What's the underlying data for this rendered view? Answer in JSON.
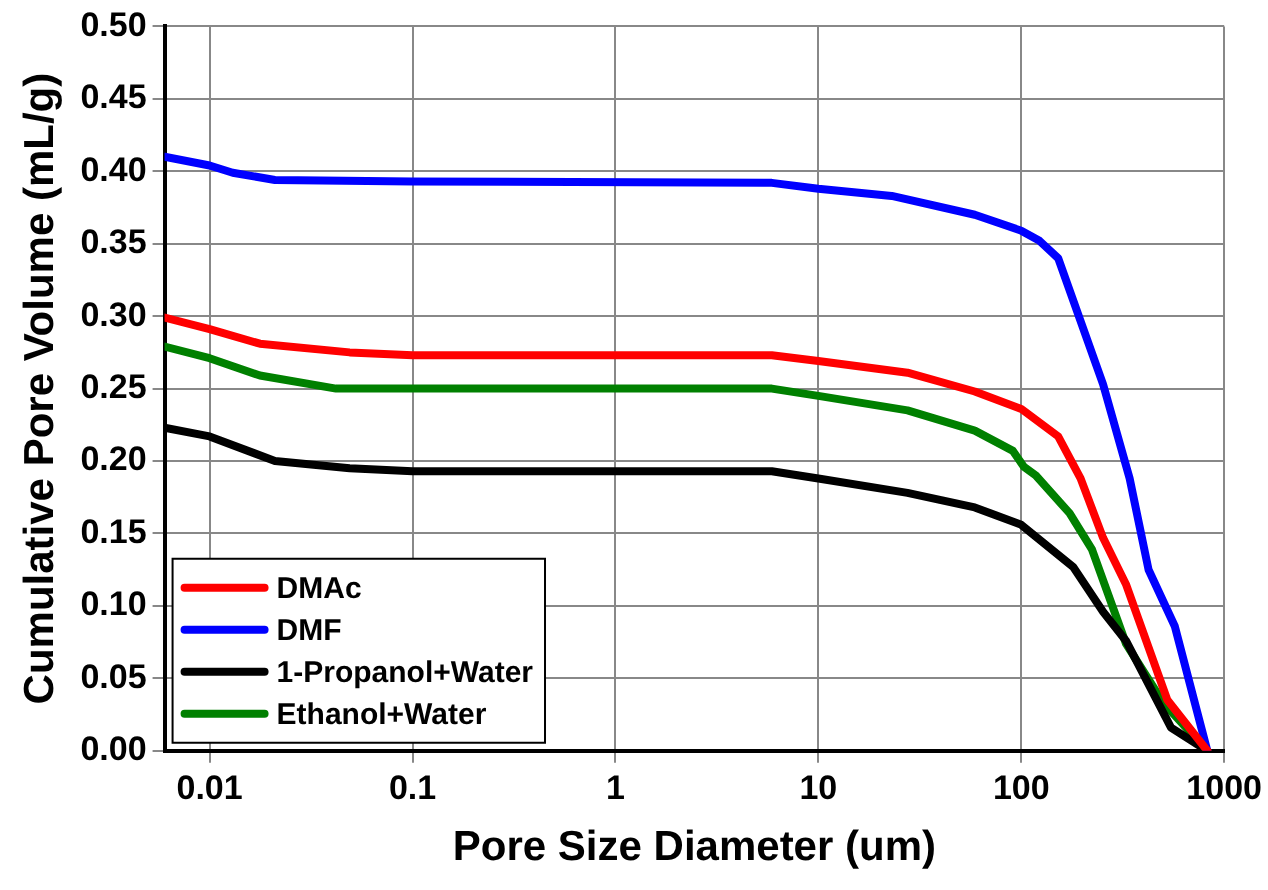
{
  "chart_data": {
    "type": "line",
    "xlabel": "Pore Size Diameter (um)",
    "ylabel": "Cumulative Pore Volume (mL/g)",
    "log": "x",
    "xlim": [
      0.006,
      1000
    ],
    "xticks": [
      0.01,
      0.1,
      1,
      10,
      100,
      1000
    ],
    "ylim": [
      0,
      0.5
    ],
    "yticks": [
      {
        "value": 0,
        "label": "0.00"
      },
      {
        "value": 0.05,
        "label": "0.05"
      },
      {
        "value": 0.1,
        "label": "0.10"
      },
      {
        "value": 0.15,
        "label": "0.15"
      },
      {
        "value": 0.2,
        "label": "0.20"
      },
      {
        "value": 0.25,
        "label": "0.25"
      },
      {
        "value": 0.3,
        "label": "0.30"
      },
      {
        "value": 0.35,
        "label": "0.35"
      },
      {
        "value": 0.4,
        "label": "0.40"
      },
      {
        "value": 0.45,
        "label": "0.45"
      },
      {
        "value": 0.5,
        "label": "0.50"
      }
    ],
    "grid": true,
    "legend": "bottom left",
    "marker": "none",
    "line_style": "solid",
    "series": [
      {
        "name": "DMAc",
        "color": "#ff0000",
        "x": [
          0.006,
          0.01,
          0.0177,
          0.049,
          0.1,
          5.9,
          10,
          27.5,
          59,
          100,
          152,
          196,
          253,
          328,
          525,
          826
        ],
        "values": [
          0.299,
          0.291,
          0.281,
          0.275,
          0.273,
          0.273,
          0.269,
          0.261,
          0.248,
          0.236,
          0.217,
          0.188,
          0.147,
          0.115,
          0.035,
          0
        ]
      },
      {
        "name": "DMF",
        "color": "#0000ff",
        "x": [
          0.006,
          0.01,
          0.013,
          0.021,
          0.1,
          5.9,
          10,
          23,
          59,
          100,
          123,
          152,
          253,
          342,
          424,
          571,
          826
        ],
        "values": [
          0.41,
          0.404,
          0.399,
          0.394,
          0.393,
          0.392,
          0.388,
          0.383,
          0.37,
          0.359,
          0.352,
          0.34,
          0.253,
          0.188,
          0.125,
          0.086,
          0
        ]
      },
      {
        "name": "1-Propanol+Water",
        "color": "#000000",
        "x": [
          0.006,
          0.01,
          0.021,
          0.049,
          0.1,
          5.9,
          10,
          27.5,
          59,
          100,
          180,
          253,
          328,
          547,
          826
        ],
        "values": [
          0.223,
          0.217,
          0.2,
          0.195,
          0.193,
          0.193,
          0.188,
          0.178,
          0.168,
          0.156,
          0.127,
          0.096,
          0.076,
          0.016,
          0
        ]
      },
      {
        "name": "Ethanol+Water",
        "color": "#008000",
        "x": [
          0.006,
          0.01,
          0.0177,
          0.042,
          5.9,
          10,
          27.5,
          59,
          91,
          103,
          118,
          173,
          223,
          328,
          502,
          826
        ],
        "values": [
          0.279,
          0.271,
          0.259,
          0.25,
          0.25,
          0.245,
          0.235,
          0.221,
          0.207,
          0.196,
          0.19,
          0.164,
          0.139,
          0.074,
          0.033,
          0
        ]
      }
    ]
  }
}
